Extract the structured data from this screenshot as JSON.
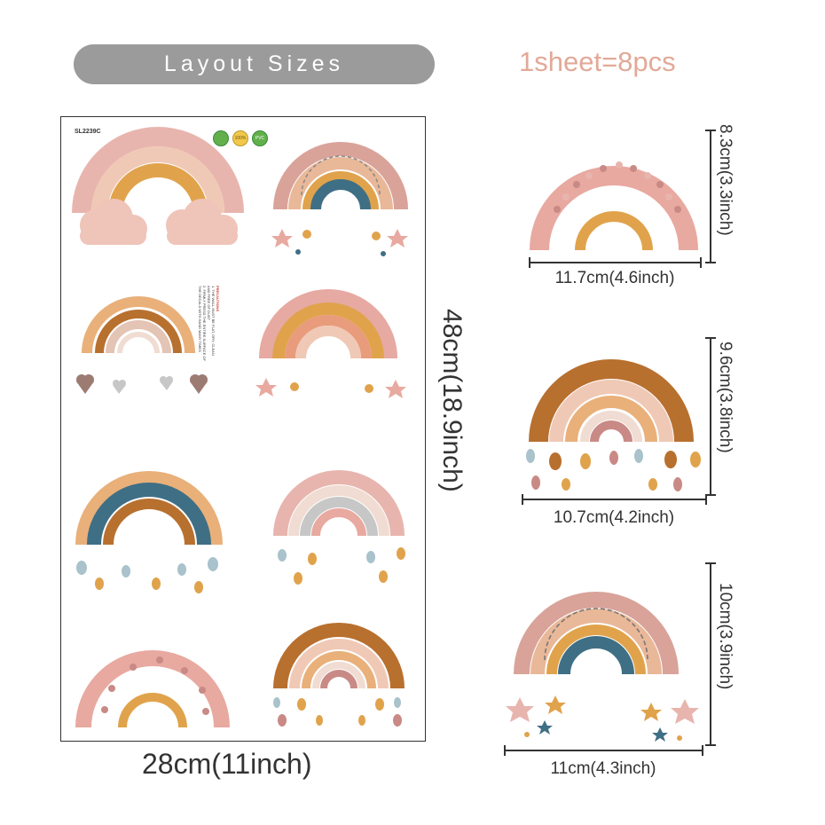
{
  "header": {
    "title": "Layout Sizes",
    "sheet_count": "1sheet=8pcs"
  },
  "sheet": {
    "code": "SL2239C",
    "badges": [
      "",
      "100%",
      "PVC"
    ],
    "precautions": {
      "heading": "PRECAUTIONS",
      "lines": [
        "1. THE WALL MUST BE FLAT, DRY, CLEAN",
        "AND FREE OF DUST",
        "2. FIRMLY PRESS THE ENTIRE SURFACE OF",
        "THE DECALS WITH HAND MANY TIMES"
      ]
    },
    "width_label": "28cm(11inch)",
    "height_label": "48cm(18.9inch)"
  },
  "samples": [
    {
      "width_label": "11.7cm(4.6inch)",
      "height_label": "8.3cm(3.3inch)"
    },
    {
      "width_label": "10.7cm(4.2inch)",
      "height_label": "9.6cm(3.8inch)"
    },
    {
      "width_label": "11cm(4.3inch)",
      "height_label": "10cm(3.9inch)"
    }
  ],
  "colors": {
    "pill": "#9b9b9b",
    "sheet_count_text": "#e2a998",
    "pink": "#e8a9a0",
    "peach": "#f0c9b6",
    "mustard": "#e0a34c",
    "rust": "#b8702f",
    "teal": "#3f6f85",
    "grey": "#c7c7c7"
  }
}
